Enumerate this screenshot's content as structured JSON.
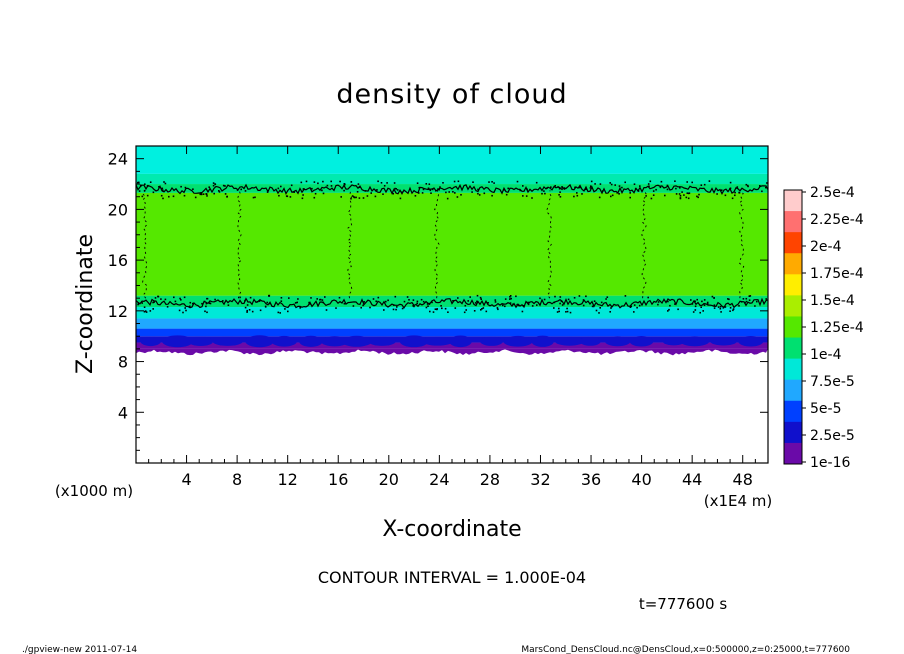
{
  "chart_data": {
    "type": "heatmap",
    "title": "density of cloud",
    "xlabel": "X-coordinate",
    "ylabel": "Z-coordinate",
    "x_unit_label": "(x1E4 m)",
    "y_unit_label": "(x1000 m)",
    "xlim": [
      0,
      50
    ],
    "ylim": [
      0,
      25
    ],
    "x_ticks": [
      4,
      8,
      12,
      16,
      20,
      24,
      28,
      32,
      36,
      40,
      44,
      48
    ],
    "y_ticks": [
      4,
      8,
      12,
      16,
      20,
      24
    ],
    "colorbar": {
      "levels": [
        "2.5e-4",
        "2.25e-4",
        "2e-4",
        "1.75e-4",
        "1.5e-4",
        "1.25e-4",
        "1e-4",
        "7.5e-5",
        "5e-5",
        "2.5e-5",
        "1e-16"
      ],
      "colors": [
        "#ffcccc",
        "#ff7070",
        "#ff4400",
        "#ffaa00",
        "#ffee00",
        "#aaee00",
        "#55e800",
        "#00e070",
        "#00e8d8",
        "#20a8ff",
        "#0040ff",
        "#1010cc",
        "#6a0aa8"
      ]
    },
    "layers": [
      {
        "z_range": [
          0,
          9.0
        ],
        "description_color": "#ffffff"
      },
      {
        "z_range": [
          9.0,
          9.5
        ],
        "color": "#6a0aa8"
      },
      {
        "z_range": [
          9.5,
          10.0
        ],
        "color": "#1010cc"
      },
      {
        "z_range": [
          10.0,
          10.6
        ],
        "color": "#0040ff"
      },
      {
        "z_range": [
          10.6,
          11.4
        ],
        "color": "#20a8ff"
      },
      {
        "z_range": [
          11.4,
          12.3
        ],
        "color": "#00e8d8"
      },
      {
        "z_range": [
          12.3,
          13.2
        ],
        "color": "#00e070"
      },
      {
        "z_range": [
          13.2,
          21.3
        ],
        "color": "#55e800"
      },
      {
        "z_range": [
          21.3,
          22.0
        ],
        "color": "#00e070"
      },
      {
        "z_range": [
          22.0,
          22.8
        ],
        "color": "#00eab0"
      },
      {
        "z_range": [
          22.8,
          25.0
        ],
        "color": "#00f0e0"
      }
    ],
    "contour_levels_z": [
      12.6,
      21.6
    ]
  },
  "annotations": {
    "contour_interval": "CONTOUR INTERVAL = 1.000E-04",
    "time": "t=777600 s",
    "footer_left": "./gpview-new  2011-07-14",
    "footer_right": "MarsCond_DensCloud.nc@DensCloud,x=0:500000,z=0:25000,t=777600"
  }
}
